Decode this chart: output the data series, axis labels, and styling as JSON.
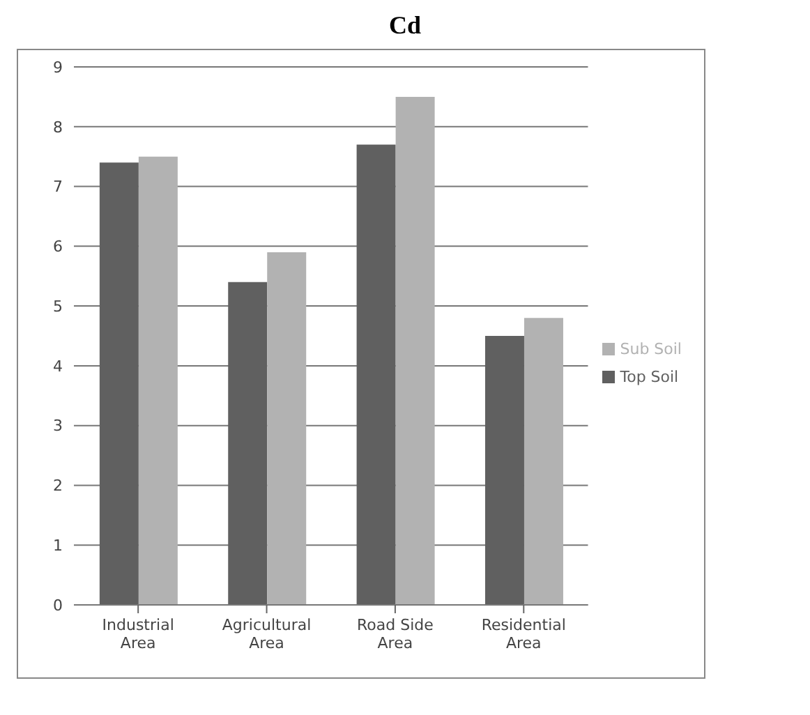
{
  "chart_data": {
    "type": "bar",
    "title": "Cd",
    "categories": [
      "Industrial Area",
      "Agricultural Area",
      "Road Side Area",
      "Residential Area"
    ],
    "series": [
      {
        "name": "Top Soil",
        "color": "#606060",
        "values": [
          7.4,
          5.4,
          7.7,
          4.5
        ]
      },
      {
        "name": "Sub Soil",
        "color": "#b2b2b2",
        "values": [
          7.5,
          5.9,
          8.5,
          4.8
        ]
      }
    ],
    "ylim": [
      0,
      9
    ],
    "yticks": [
      0,
      1,
      2,
      3,
      4,
      5,
      6,
      7,
      8,
      9
    ],
    "grid": "y",
    "legend": "right"
  }
}
